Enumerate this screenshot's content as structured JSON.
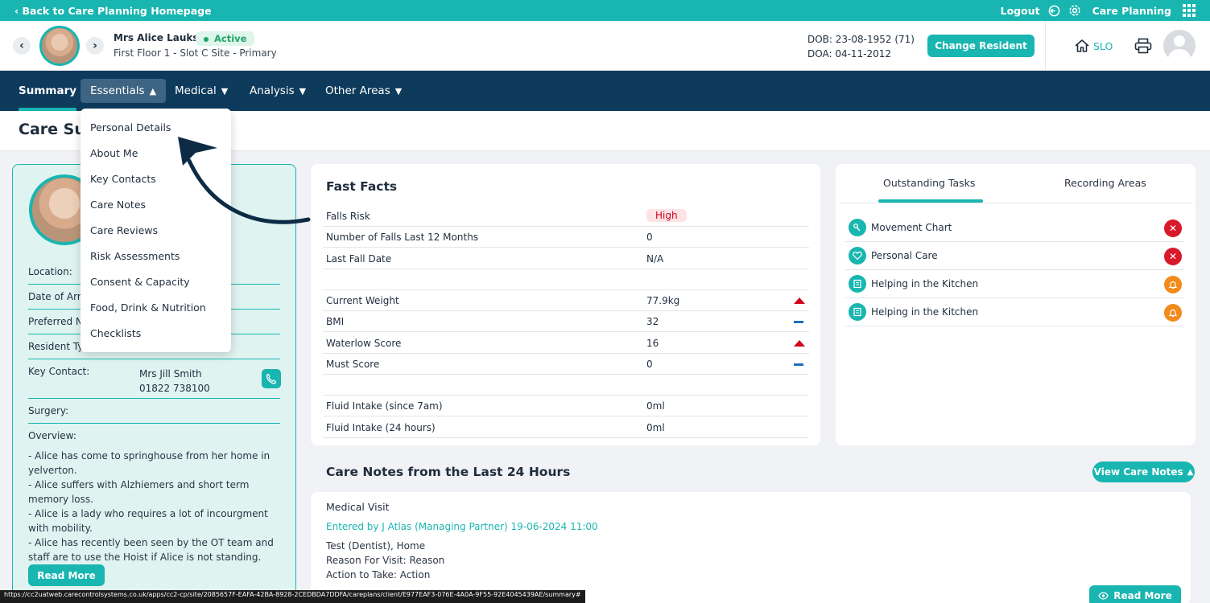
{
  "topbar": {
    "back_label": "‹ Back to Care Planning Homepage",
    "logout_label": "Logout",
    "app_label": "Care Planning"
  },
  "resident": {
    "name": "Mrs Alice Lauks",
    "status": "Active",
    "location": "First Floor 1 - Slot C Site - Primary",
    "dob": "DOB: 23-08-1952 (71)",
    "doa": "DOA: 04-11-2012",
    "change_label": "Change Resident",
    "home_label": "SLO"
  },
  "nav": {
    "summary": "Summary",
    "essentials": "Essentials",
    "medical": "Medical",
    "analysis": "Analysis",
    "other": "Other Areas"
  },
  "page": {
    "title": "Care Su"
  },
  "dropdown": {
    "items": [
      "Personal Details",
      "About Me",
      "Key Contacts",
      "Care Notes",
      "Care Reviews",
      "Risk Assessments",
      "Consent & Capacity",
      "Food, Drink & Nutrition",
      "Checklists"
    ]
  },
  "profile": {
    "location_label": "Location:",
    "arrival_label": "Date of Arri",
    "preferred_label": "Preferred N",
    "type_label": "Resident Ty",
    "key_contact_label": "Key Contact:",
    "key_contact_name": "Mrs Jill Smith",
    "key_contact_phone": "01822 738100",
    "surgery_label": "Surgery:",
    "overview_label": "Overview:",
    "overview_lines": [
      "- Alice has come to springhouse from her home in yelverton.",
      "- Alice suffers with Alzhiemers and short term memory loss.",
      "- Alice is a lady who requires a lot of incourgment with mobility.",
      "- Alice has recently been seen by the OT team and staff are to use the Hoist if Alice is not standing."
    ],
    "read_more": "Read More"
  },
  "fast_facts": {
    "title": "Fast Facts",
    "rows": [
      {
        "label": "Falls Risk",
        "value": "High",
        "indicator": "pill"
      },
      {
        "label": "Number of Falls Last 12 Months",
        "value": "0",
        "indicator": ""
      },
      {
        "label": "Last Fall Date",
        "value": "N/A",
        "indicator": ""
      },
      {
        "label": "Current Weight",
        "value": "77.9kg",
        "indicator": "up"
      },
      {
        "label": "BMI",
        "value": "32",
        "indicator": "same"
      },
      {
        "label": "Waterlow Score",
        "value": "16",
        "indicator": "up"
      },
      {
        "label": "Must Score",
        "value": "0",
        "indicator": "same"
      },
      {
        "label": "Fluid Intake (since 7am)",
        "value": "0ml",
        "indicator": ""
      },
      {
        "label": "Fluid Intake (24 hours)",
        "value": "0ml",
        "indicator": ""
      }
    ]
  },
  "tasks": {
    "tab_outstanding": "Outstanding Tasks",
    "tab_recording": "Recording Areas",
    "items": [
      {
        "label": "Movement Chart",
        "status": "overdue",
        "icon": "movement-icon"
      },
      {
        "label": "Personal Care",
        "status": "overdue",
        "icon": "heart-icon"
      },
      {
        "label": "Helping in the Kitchen",
        "status": "due",
        "icon": "checklist-icon"
      },
      {
        "label": "Helping in the Kitchen",
        "status": "due",
        "icon": "checklist-icon"
      }
    ]
  },
  "care_notes": {
    "title": "Care Notes from the Last 24 Hours",
    "view_label": "View Care Notes",
    "note_title": "Medical Visit",
    "entered_by": "Entered by J Atlas (Managing Partner) 19-06-2024 11:00",
    "lines": [
      "Test (Dentist), Home",
      "Reason For Visit: Reason",
      "Action to Take: Action"
    ],
    "read_more": "Read More"
  },
  "status_url": "https://cc2uatweb.carecontrolsystems.co.uk/apps/cc2-cp/site/2085657F-EAFA-42BA-8928-2CEDBDA7DDFA/careplans/client/E977EAF3-076E-4A0A-9F55-92E4045439AE/summary#",
  "colors": {
    "teal": "#19b5b0",
    "navy": "#0e3a5c",
    "red": "#d7192a",
    "orange": "#f28a1c"
  }
}
